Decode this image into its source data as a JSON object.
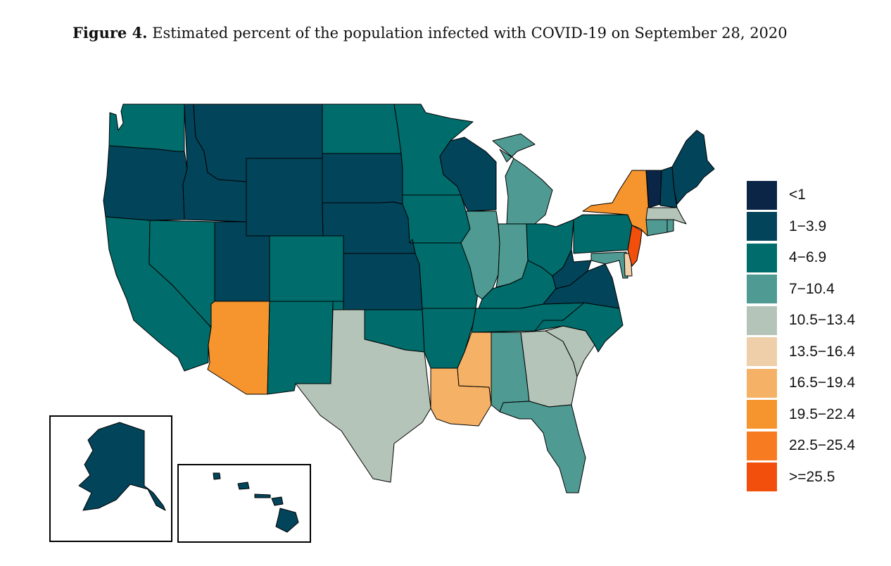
{
  "figure": {
    "label": "Figure 4.",
    "caption": "Estimated percent of the population infected with COVID-19 on September 28, 2020"
  },
  "legend": [
    {
      "label": "<1",
      "color": "#0b2547"
    },
    {
      "label": "1−3.9",
      "color": "#02445a"
    },
    {
      "label": "4−6.9",
      "color": "#006c6b"
    },
    {
      "label": "7−10.4",
      "color": "#4f9a92"
    },
    {
      "label": "10.5−13.4",
      "color": "#b5c4b8"
    },
    {
      "label": "13.5−16.4",
      "color": "#eecfaa"
    },
    {
      "label": "16.5−19.4",
      "color": "#f5b266"
    },
    {
      "label": "19.5−22.4",
      "color": "#f6952d"
    },
    {
      "label": "22.5−25.4",
      "color": "#f77b20"
    },
    {
      "label": ">=25.5",
      "color": "#f24e0c"
    }
  ],
  "states": {
    "WA": "4−6.9",
    "OR": "1−3.9",
    "CA": "4−6.9",
    "ID": "1−3.9",
    "NV": "4−6.9",
    "MT": "1−3.9",
    "WY": "1−3.9",
    "UT": "1−3.9",
    "AZ": "19.5−22.4",
    "CO": "4−6.9",
    "NM": "4−6.9",
    "ND": "4−6.9",
    "SD": "1−3.9",
    "NE": "1−3.9",
    "KS": "1−3.9",
    "OK": "4−6.9",
    "TX": "10.5−13.4",
    "MN": "4−6.9",
    "IA": "4−6.9",
    "MO": "4−6.9",
    "AR": "4−6.9",
    "LA": "16.5−19.4",
    "WI": "1−3.9",
    "IL": "7−10.4",
    "MI": "7−10.4",
    "IN": "7−10.4",
    "OH": "4−6.9",
    "KY": "4−6.9",
    "TN": "4−6.9",
    "MS": "16.5−19.4",
    "AL": "7−10.4",
    "GA": "10.5−13.4",
    "FL": "7−10.4",
    "SC": "10.5−13.4",
    "NC": "4−6.9",
    "VA": "1−3.9",
    "WV": "1−3.9",
    "PA": "4−6.9",
    "NY": "19.5−22.4",
    "NJ": ">=25.5",
    "DE": "13.5−16.4",
    "MD": "7−10.4",
    "CT": "7−10.4",
    "RI": "7−10.4",
    "MA": "10.5−13.4",
    "VT": "<1",
    "NH": "1−3.9",
    "ME": "1−3.9",
    "AK": "1−3.9",
    "HI": "1−3.9"
  }
}
